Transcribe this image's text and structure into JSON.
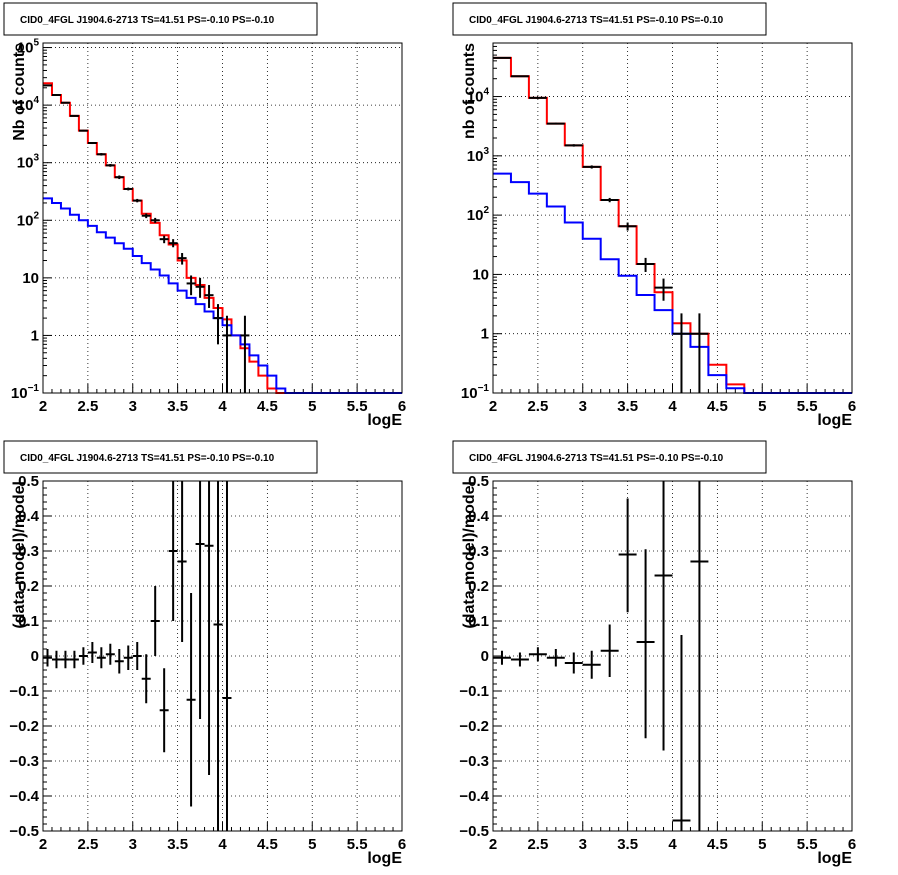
{
  "chart_data": [
    {
      "type": "line",
      "title": "CID0_4FGL J1904.6-2713 TS=41.51 PS=-0.10 PS=-0.10",
      "xlabel": "logE",
      "ylabel": "Nb of counts",
      "yscale": "log",
      "xlim": [
        2,
        6
      ],
      "ylim": [
        0.1,
        120000
      ],
      "grid": true,
      "x_ticks": [
        "2",
        "2.5",
        "3",
        "3.5",
        "4",
        "4.5",
        "5",
        "5.5",
        "6"
      ],
      "y_ticks": [
        {
          "value": 0.1,
          "label": "10",
          "sup": "−1"
        },
        {
          "value": 1,
          "label": "1",
          "sup": ""
        },
        {
          "value": 10,
          "label": "10",
          "sup": ""
        },
        {
          "value": 100,
          "label": "10",
          "sup": "2"
        },
        {
          "value": 1000,
          "label": "10",
          "sup": "3"
        },
        {
          "value": 10000,
          "label": "10",
          "sup": "4"
        },
        {
          "value": 100000,
          "label": "10",
          "sup": "5"
        }
      ],
      "bin_edges": [
        2.0,
        2.1,
        2.2,
        2.3,
        2.4,
        2.5,
        2.6,
        2.7,
        2.8,
        2.9,
        3.0,
        3.1,
        3.2,
        3.3,
        3.4,
        3.5,
        3.6,
        3.7,
        3.8,
        3.9,
        4.0,
        4.1,
        4.2,
        4.3,
        4.4,
        4.5,
        4.6,
        4.7,
        4.8,
        4.9,
        5.0,
        5.1,
        5.2,
        5.3,
        5.4,
        5.5,
        5.6,
        5.7,
        5.8,
        5.9,
        6.0
      ],
      "series": [
        {
          "color": "#ff0000",
          "style": "step",
          "values": [
            24000,
            15000,
            11000,
            6500,
            3600,
            2200,
            1400,
            900,
            560,
            350,
            220,
            130,
            90,
            55,
            38,
            20,
            10,
            7.5,
            4.5,
            3.0,
            1.9,
            1.0,
            0.6,
            0.35,
            0.2,
            0.12,
            0.1,
            0.1,
            0.1,
            0.1,
            0.1,
            0.1,
            0.1,
            0.1,
            0.1,
            0.1,
            0.1,
            0.1,
            0.1,
            0.1
          ]
        },
        {
          "color": "#0000ff",
          "style": "step",
          "values": [
            240,
            200,
            160,
            125,
            100,
            80,
            62,
            50,
            40,
            32,
            24,
            18,
            14,
            11,
            8,
            6,
            4.5,
            3.5,
            2.6,
            2.0,
            1.5,
            1.0,
            0.7,
            0.45,
            0.3,
            0.2,
            0.12,
            0.1,
            0.1,
            0.1,
            0.1,
            0.1,
            0.1,
            0.1,
            0.1,
            0.1,
            0.1,
            0.1,
            0.1,
            0.1
          ]
        },
        {
          "color": "#000000",
          "style": "errorbar",
          "points": [
            {
              "x": 2.05,
              "y": 22000,
              "lo": 21500,
              "hi": 22500
            },
            {
              "x": 2.15,
              "y": 15000,
              "lo": 14600,
              "hi": 15400
            },
            {
              "x": 2.25,
              "y": 11000,
              "lo": 10700,
              "hi": 11300
            },
            {
              "x": 2.35,
              "y": 6500,
              "lo": 6300,
              "hi": 6700
            },
            {
              "x": 2.45,
              "y": 3600,
              "lo": 3480,
              "hi": 3720
            },
            {
              "x": 2.55,
              "y": 2200,
              "lo": 2110,
              "hi": 2290
            },
            {
              "x": 2.65,
              "y": 1400,
              "lo": 1330,
              "hi": 1470
            },
            {
              "x": 2.75,
              "y": 900,
              "lo": 850,
              "hi": 950
            },
            {
              "x": 2.85,
              "y": 560,
              "lo": 520,
              "hi": 600
            },
            {
              "x": 2.95,
              "y": 350,
              "lo": 330,
              "hi": 370
            },
            {
              "x": 3.05,
              "y": 220,
              "lo": 205,
              "hi": 235
            },
            {
              "x": 3.15,
              "y": 120,
              "lo": 109,
              "hi": 131
            },
            {
              "x": 3.25,
              "y": 100,
              "lo": 90,
              "hi": 110
            },
            {
              "x": 3.35,
              "y": 47,
              "lo": 40,
              "hi": 54
            },
            {
              "x": 3.45,
              "y": 40,
              "lo": 34,
              "hi": 47
            },
            {
              "x": 3.55,
              "y": 22,
              "lo": 17,
              "hi": 27
            },
            {
              "x": 3.65,
              "y": 8,
              "lo": 5,
              "hi": 11
            },
            {
              "x": 3.75,
              "y": 7,
              "lo": 4.5,
              "hi": 10
            },
            {
              "x": 3.85,
              "y": 5,
              "lo": 3,
              "hi": 7.5
            },
            {
              "x": 3.95,
              "y": 2,
              "lo": 0.7,
              "hi": 3.5
            },
            {
              "x": 4.05,
              "y": 1,
              "lo": 0.1,
              "hi": 2.2
            },
            {
              "x": 4.25,
              "y": 1,
              "lo": 0.1,
              "hi": 2.2
            }
          ]
        }
      ]
    },
    {
      "type": "line",
      "title": "CID0_4FGL J1904.6-2713 TS=41.51 PS=-0.10 PS=-0.10",
      "xlabel": "logE",
      "ylabel": "nb of counts",
      "yscale": "log",
      "xlim": [
        2,
        6
      ],
      "ylim": [
        0.1,
        80000
      ],
      "grid": true,
      "x_ticks": [
        "2",
        "2.5",
        "3",
        "3.5",
        "4",
        "4.5",
        "5",
        "5.5",
        "6"
      ],
      "y_ticks": [
        {
          "value": 0.1,
          "label": "10",
          "sup": "−1"
        },
        {
          "value": 1,
          "label": "1",
          "sup": ""
        },
        {
          "value": 10,
          "label": "10",
          "sup": ""
        },
        {
          "value": 100,
          "label": "10",
          "sup": "2"
        },
        {
          "value": 1000,
          "label": "10",
          "sup": "3"
        },
        {
          "value": 10000,
          "label": "10",
          "sup": "4"
        }
      ],
      "bin_edges": [
        2.0,
        2.2,
        2.4,
        2.6,
        2.8,
        3.0,
        3.2,
        3.4,
        3.6,
        3.8,
        4.0,
        4.2,
        4.4,
        4.6,
        4.8,
        5.0,
        5.2,
        5.4,
        5.6,
        5.8,
        6.0
      ],
      "series": [
        {
          "color": "#ff0000",
          "style": "step",
          "values": [
            45000,
            22000,
            9500,
            3500,
            1500,
            650,
            180,
            65,
            15,
            5,
            1.5,
            1.0,
            0.3,
            0.14,
            0.1,
            0.1,
            0.1,
            0.1,
            0.1,
            0.1
          ]
        },
        {
          "color": "#0000ff",
          "style": "step",
          "values": [
            500,
            360,
            230,
            140,
            75,
            40,
            18,
            9.5,
            4.5,
            2.5,
            1.0,
            0.6,
            0.2,
            0.12,
            0.1,
            0.1,
            0.1,
            0.1,
            0.1,
            0.1
          ]
        },
        {
          "color": "#000000",
          "style": "errorbar",
          "points": [
            {
              "x": 2.1,
              "y": 45000,
              "lo": 44300,
              "hi": 45700
            },
            {
              "x": 2.3,
              "y": 22000,
              "lo": 21500,
              "hi": 22500
            },
            {
              "x": 2.5,
              "y": 9500,
              "lo": 9200,
              "hi": 9800
            },
            {
              "x": 2.7,
              "y": 3500,
              "lo": 3380,
              "hi": 3620
            },
            {
              "x": 2.9,
              "y": 1500,
              "lo": 1430,
              "hi": 1570
            },
            {
              "x": 3.1,
              "y": 650,
              "lo": 610,
              "hi": 690
            },
            {
              "x": 3.3,
              "y": 180,
              "lo": 165,
              "hi": 195
            },
            {
              "x": 3.5,
              "y": 65,
              "lo": 55,
              "hi": 75
            },
            {
              "x": 3.7,
              "y": 15,
              "lo": 11,
              "hi": 19
            },
            {
              "x": 3.9,
              "y": 6,
              "lo": 3.6,
              "hi": 8.5
            },
            {
              "x": 4.1,
              "y": 1,
              "lo": 0.1,
              "hi": 2.2
            },
            {
              "x": 4.3,
              "y": 1,
              "lo": 0.1,
              "hi": 2.2
            }
          ]
        }
      ]
    },
    {
      "type": "scatter",
      "title": "CID0_4FGL J1904.6-2713 TS=41.51 PS=-0.10 PS=-0.10",
      "xlabel": "logE",
      "ylabel": "(data-model)/model",
      "yscale": "linear",
      "xlim": [
        2,
        6
      ],
      "ylim": [
        -0.5,
        0.5
      ],
      "grid": true,
      "x_ticks": [
        "2",
        "2.5",
        "3",
        "3.5",
        "4",
        "4.5",
        "5",
        "5.5",
        "6"
      ],
      "y_ticks": [
        "−0.5",
        "−0.4",
        "−0.3",
        "−0.2",
        "−0.1",
        "0",
        "0.1",
        "0.2",
        "0.3",
        "0.4",
        "0.5"
      ],
      "xerr": 0.05,
      "points": [
        {
          "x": 2.05,
          "y": -0.005,
          "lo": -0.03,
          "hi": 0.02
        },
        {
          "x": 2.15,
          "y": -0.01,
          "lo": -0.035,
          "hi": 0.015
        },
        {
          "x": 2.25,
          "y": -0.01,
          "lo": -0.035,
          "hi": 0.015
        },
        {
          "x": 2.35,
          "y": -0.01,
          "lo": -0.035,
          "hi": 0.015
        },
        {
          "x": 2.45,
          "y": 0.0,
          "lo": -0.025,
          "hi": 0.025
        },
        {
          "x": 2.55,
          "y": 0.01,
          "lo": -0.02,
          "hi": 0.04
        },
        {
          "x": 2.65,
          "y": -0.005,
          "lo": -0.035,
          "hi": 0.025
        },
        {
          "x": 2.75,
          "y": 0.005,
          "lo": -0.025,
          "hi": 0.035
        },
        {
          "x": 2.85,
          "y": -0.015,
          "lo": -0.05,
          "hi": 0.02
        },
        {
          "x": 2.95,
          "y": -0.005,
          "lo": -0.04,
          "hi": 0.03
        },
        {
          "x": 3.05,
          "y": 0.0,
          "lo": -0.04,
          "hi": 0.04
        },
        {
          "x": 3.15,
          "y": -0.065,
          "lo": -0.135,
          "hi": 0.005
        },
        {
          "x": 3.25,
          "y": 0.1,
          "lo": 0.0,
          "hi": 0.2
        },
        {
          "x": 3.35,
          "y": -0.155,
          "lo": -0.275,
          "hi": -0.035
        },
        {
          "x": 3.45,
          "y": 0.3,
          "lo": 0.1,
          "hi": 0.5
        },
        {
          "x": 3.55,
          "y": 0.27,
          "lo": 0.04,
          "hi": 0.5
        },
        {
          "x": 3.65,
          "y": -0.125,
          "lo": -0.43,
          "hi": 0.18
        },
        {
          "x": 3.75,
          "y": 0.32,
          "lo": -0.18,
          "hi": 0.5
        },
        {
          "x": 3.85,
          "y": 0.315,
          "lo": -0.34,
          "hi": 0.5
        },
        {
          "x": 3.95,
          "y": 0.09,
          "lo": -0.5,
          "hi": 0.5
        },
        {
          "x": 4.05,
          "y": -0.12,
          "lo": -0.5,
          "hi": 0.5
        }
      ]
    },
    {
      "type": "scatter",
      "title": "CID0_4FGL J1904.6-2713 TS=41.51 PS=-0.10 PS=-0.10",
      "xlabel": "logE",
      "ylabel": "(data-model)/model",
      "yscale": "linear",
      "xlim": [
        2,
        6
      ],
      "ylim": [
        -0.5,
        0.5
      ],
      "grid": true,
      "x_ticks": [
        "2",
        "2.5",
        "3",
        "3.5",
        "4",
        "4.5",
        "5",
        "5.5",
        "6"
      ],
      "y_ticks": [
        "−0.5",
        "−0.4",
        "−0.3",
        "−0.2",
        "−0.1",
        "0",
        "0.1",
        "0.2",
        "0.3",
        "0.4",
        "0.5"
      ],
      "xerr": 0.1,
      "points": [
        {
          "x": 2.1,
          "y": -0.005,
          "lo": -0.025,
          "hi": 0.015
        },
        {
          "x": 2.3,
          "y": -0.01,
          "lo": -0.03,
          "hi": 0.01
        },
        {
          "x": 2.5,
          "y": 0.005,
          "lo": -0.015,
          "hi": 0.025
        },
        {
          "x": 2.7,
          "y": -0.005,
          "lo": -0.03,
          "hi": 0.02
        },
        {
          "x": 2.9,
          "y": -0.02,
          "lo": -0.05,
          "hi": 0.01
        },
        {
          "x": 3.1,
          "y": -0.025,
          "lo": -0.065,
          "hi": 0.015
        },
        {
          "x": 3.3,
          "y": 0.015,
          "lo": -0.06,
          "hi": 0.09
        },
        {
          "x": 3.5,
          "y": 0.29,
          "lo": 0.125,
          "hi": 0.45
        },
        {
          "x": 3.7,
          "y": 0.04,
          "lo": -0.235,
          "hi": 0.305
        },
        {
          "x": 3.9,
          "y": 0.23,
          "lo": -0.27,
          "hi": 0.5
        },
        {
          "x": 4.1,
          "y": -0.47,
          "lo": -0.5,
          "hi": 0.06
        },
        {
          "x": 4.3,
          "y": 0.27,
          "lo": -0.5,
          "hi": 0.5
        }
      ]
    }
  ]
}
